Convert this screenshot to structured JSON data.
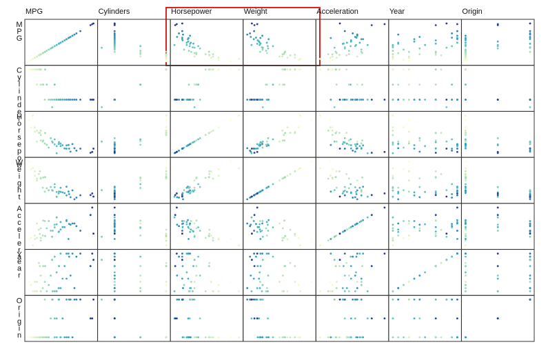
{
  "chart_data": {
    "type": "splom",
    "variables": [
      "MPG",
      "Cylinders",
      "Horsepower",
      "Weight",
      "Acceleration",
      "Year",
      "Origin"
    ],
    "row_labels": [
      "MPG",
      "Cylinder",
      "Horsepow",
      "Weight",
      "Accelera",
      "Year",
      "Origin"
    ],
    "color_by": 0,
    "colormap": [
      "#ffffcc",
      "#a1dab4",
      "#41b6c4",
      "#2c7fb8",
      "#253494"
    ],
    "cars": [
      [
        18,
        8,
        130,
        3504,
        12,
        70,
        1
      ],
      [
        15,
        8,
        165,
        3693,
        11.5,
        70,
        1
      ],
      [
        18,
        8,
        150,
        3436,
        11,
        70,
        1
      ],
      [
        16,
        8,
        150,
        3433,
        12,
        70,
        1
      ],
      [
        14,
        8,
        220,
        4354,
        9,
        70,
        1
      ],
      [
        24,
        4,
        95,
        2372,
        15,
        70,
        3
      ],
      [
        26,
        4,
        46,
        1835,
        20.5,
        70,
        2
      ],
      [
        25,
        4,
        87,
        2672,
        17.5,
        70,
        2
      ],
      [
        21,
        6,
        85,
        2587,
        16,
        70,
        1
      ],
      [
        27,
        4,
        88,
        2130,
        14.5,
        71,
        3
      ],
      [
        28,
        4,
        90,
        2264,
        15.5,
        71,
        1
      ],
      [
        19,
        6,
        100,
        2634,
        13,
        71,
        1
      ],
      [
        13,
        8,
        165,
        4274,
        12,
        72,
        1
      ],
      [
        22,
        4,
        72,
        2408,
        19,
        72,
        1
      ],
      [
        35,
        4,
        69,
        1613,
        18,
        71,
        3
      ],
      [
        12,
        8,
        198,
        4952,
        11.5,
        73,
        1
      ],
      [
        20,
        4,
        91,
        2279,
        19,
        73,
        3
      ],
      [
        29,
        4,
        83,
        2219,
        16.5,
        74,
        2
      ],
      [
        16,
        6,
        100,
        3278,
        18,
        73,
        1
      ],
      [
        31,
        4,
        67,
        1950,
        19,
        74,
        3
      ],
      [
        18,
        6,
        105,
        3459,
        16,
        75,
        1
      ],
      [
        15,
        8,
        145,
        4082,
        13,
        73,
        1
      ],
      [
        23,
        4,
        115,
        2694,
        15,
        75,
        2
      ],
      [
        33,
        4,
        53,
        1795,
        17.5,
        75,
        3
      ],
      [
        17.5,
        8,
        140,
        4080,
        13.7,
        78,
        1
      ],
      [
        26,
        4,
        79,
        2255,
        17.7,
        76,
        1
      ],
      [
        19.2,
        6,
        105,
        3535,
        19.2,
        78,
        1
      ],
      [
        30,
        4,
        68,
        2155,
        16.5,
        78,
        1
      ],
      [
        36,
        4,
        58,
        1755,
        16.9,
        81,
        3
      ],
      [
        43.1,
        4,
        48,
        1985,
        21.5,
        78,
        2
      ],
      [
        27.2,
        4,
        97,
        2300,
        14.7,
        78,
        3
      ],
      [
        20.2,
        8,
        139,
        3570,
        12.8,
        78,
        1
      ],
      [
        32.3,
        4,
        67,
        2065,
        17.8,
        81,
        3
      ],
      [
        44.6,
        4,
        67,
        1850,
        13.8,
        80,
        3
      ],
      [
        23.7,
        3,
        100,
        2420,
        12.5,
        80,
        3
      ],
      [
        38,
        4,
        67,
        1965,
        15,
        82,
        3
      ],
      [
        25,
        6,
        110,
        2945,
        16.4,
        81,
        1
      ],
      [
        31,
        4,
        82,
        2720,
        19.4,
        82,
        1
      ],
      [
        44,
        4,
        52,
        2130,
        24.6,
        82,
        2
      ],
      [
        32,
        4,
        84,
        2295,
        11.6,
        82,
        1
      ],
      [
        28,
        4,
        79,
        2625,
        18.6,
        82,
        1
      ],
      [
        17,
        8,
        140,
        3840,
        15.4,
        79,
        1
      ],
      [
        34,
        4,
        88,
        2395,
        18,
        82,
        1
      ]
    ]
  }
}
